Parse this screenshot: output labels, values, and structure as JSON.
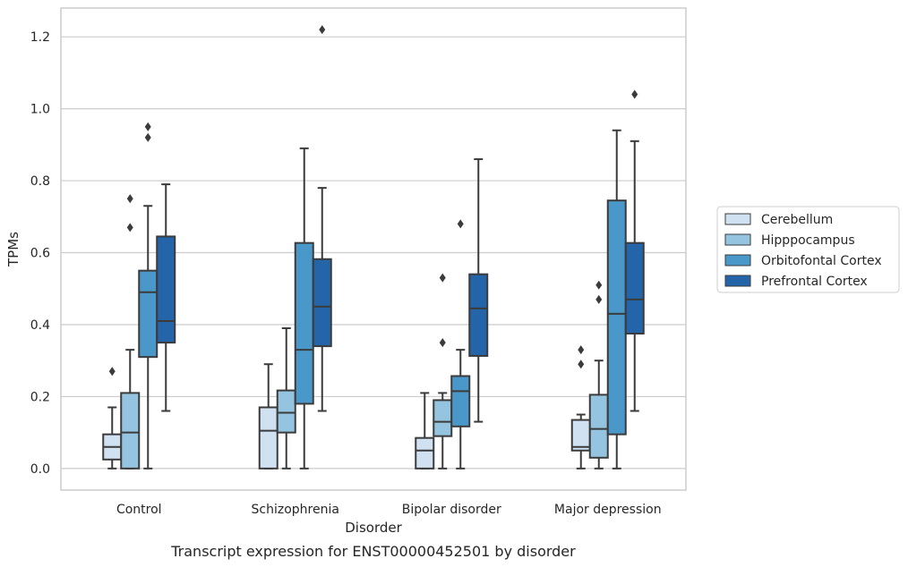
{
  "chart_data": {
    "type": "box",
    "xlabel": "Disorder",
    "ylabel": "TPMs",
    "caption": "Transcript expression for ENST00000452501 by disorder",
    "ylim": [
      -0.06,
      1.28
    ],
    "yticks": [
      "0.0",
      "0.2",
      "0.4",
      "0.6",
      "0.8",
      "1.0",
      "1.2"
    ],
    "grid": "horizontal",
    "legend_position": "right",
    "categories": [
      "Control",
      "Schizophrenia",
      "Bipolar disorder",
      "Major depression"
    ],
    "series": [
      {
        "name": "Cerebellum",
        "color": "#d0e1f2",
        "boxes": [
          {
            "whislo": 0.0,
            "q1": 0.025,
            "med": 0.06,
            "q3": 0.095,
            "whishi": 0.17,
            "fliers": [
              0.27
            ]
          },
          {
            "whislo": 0.0,
            "q1": 0.0,
            "med": 0.105,
            "q3": 0.17,
            "whishi": 0.29,
            "fliers": []
          },
          {
            "whislo": 0.0,
            "q1": 0.0,
            "med": 0.05,
            "q3": 0.085,
            "whishi": 0.21,
            "fliers": []
          },
          {
            "whislo": 0.0,
            "q1": 0.05,
            "med": 0.06,
            "q3": 0.135,
            "whishi": 0.15,
            "fliers": [
              0.29,
              0.33
            ]
          }
        ]
      },
      {
        "name": "Hipppocampus",
        "color": "#94c4df",
        "boxes": [
          {
            "whislo": 0.0,
            "q1": 0.0,
            "med": 0.1,
            "q3": 0.21,
            "whishi": 0.33,
            "fliers": [
              0.67,
              0.75
            ]
          },
          {
            "whislo": 0.0,
            "q1": 0.1,
            "med": 0.155,
            "q3": 0.217,
            "whishi": 0.39,
            "fliers": []
          },
          {
            "whislo": 0.0,
            "q1": 0.09,
            "med": 0.13,
            "q3": 0.19,
            "whishi": 0.21,
            "fliers": [
              0.35,
              0.53
            ]
          },
          {
            "whislo": 0.0,
            "q1": 0.03,
            "med": 0.11,
            "q3": 0.205,
            "whishi": 0.3,
            "fliers": [
              0.47,
              0.51
            ]
          }
        ]
      },
      {
        "name": "Orbitofontal Cortex",
        "color": "#4a98c9",
        "boxes": [
          {
            "whislo": 0.0,
            "q1": 0.31,
            "med": 0.49,
            "q3": 0.55,
            "whishi": 0.73,
            "fliers": [
              0.92,
              0.95
            ]
          },
          {
            "whislo": 0.0,
            "q1": 0.18,
            "med": 0.33,
            "q3": 0.627,
            "whishi": 0.89,
            "fliers": []
          },
          {
            "whislo": 0.0,
            "q1": 0.117,
            "med": 0.215,
            "q3": 0.257,
            "whishi": 0.33,
            "fliers": [
              0.68
            ]
          },
          {
            "whislo": 0.0,
            "q1": 0.095,
            "med": 0.43,
            "q3": 0.745,
            "whishi": 0.94,
            "fliers": []
          }
        ]
      },
      {
        "name": "Prefrontal Cortex",
        "color": "#2464a9",
        "boxes": [
          {
            "whislo": 0.16,
            "q1": 0.35,
            "med": 0.41,
            "q3": 0.645,
            "whishi": 0.79,
            "fliers": []
          },
          {
            "whislo": 0.16,
            "q1": 0.34,
            "med": 0.45,
            "q3": 0.582,
            "whishi": 0.78,
            "fliers": [
              1.22
            ]
          },
          {
            "whislo": 0.13,
            "q1": 0.313,
            "med": 0.445,
            "q3": 0.54,
            "whishi": 0.86,
            "fliers": []
          },
          {
            "whislo": 0.16,
            "q1": 0.375,
            "med": 0.47,
            "q3": 0.627,
            "whishi": 0.91,
            "fliers": [
              1.04
            ]
          }
        ]
      }
    ]
  }
}
